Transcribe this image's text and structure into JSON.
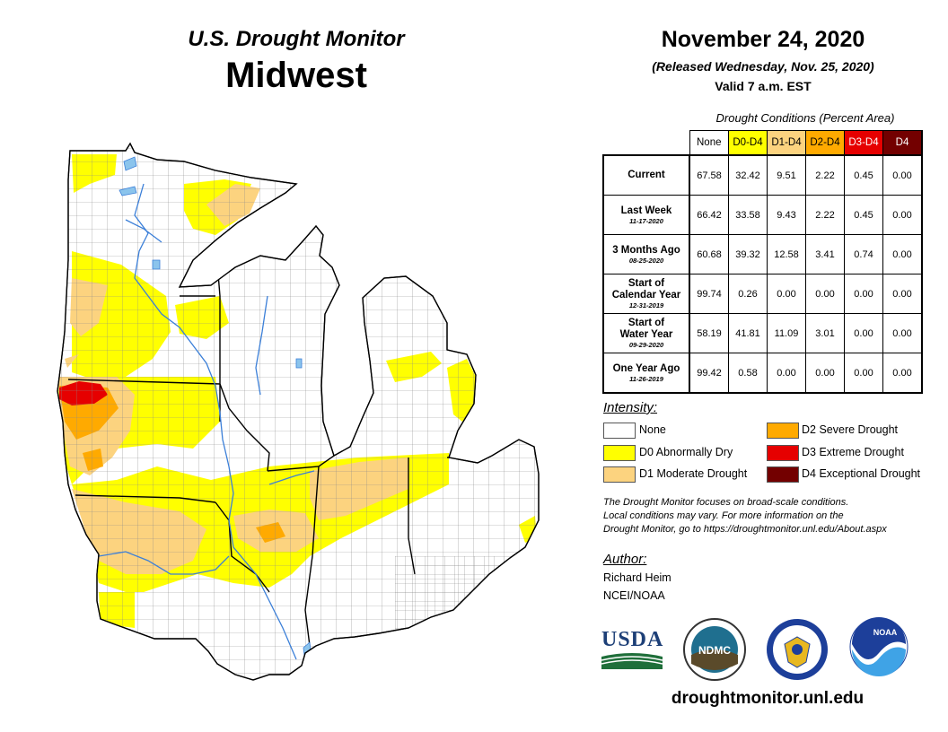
{
  "header": {
    "title": "U.S. Drought Monitor",
    "region": "Midwest",
    "date": "November 24, 2020",
    "released": "(Released Wednesday, Nov. 25, 2020)",
    "valid": "Valid 7 a.m. EST"
  },
  "table": {
    "caption": "Drought Conditions (Percent Area)",
    "columns": [
      "None",
      "D0-D4",
      "D1-D4",
      "D2-D4",
      "D3-D4",
      "D4"
    ],
    "column_colors": [
      "#ffffff",
      "#ffff00",
      "#fcd37f",
      "#ffaa00",
      "#e60000",
      "#730000"
    ],
    "rows": [
      {
        "label": "Current",
        "label2": "",
        "sub": "",
        "values": [
          "67.58",
          "32.42",
          "9.51",
          "2.22",
          "0.45",
          "0.00"
        ]
      },
      {
        "label": "Last Week",
        "label2": "",
        "sub": "11-17-2020",
        "values": [
          "66.42",
          "33.58",
          "9.43",
          "2.22",
          "0.45",
          "0.00"
        ]
      },
      {
        "label": "3 Months Ago",
        "label2": "",
        "sub": "08-25-2020",
        "values": [
          "60.68",
          "39.32",
          "12.58",
          "3.41",
          "0.74",
          "0.00"
        ]
      },
      {
        "label": "Start of",
        "label2": "Calendar Year",
        "sub": "12-31-2019",
        "values": [
          "99.74",
          "0.26",
          "0.00",
          "0.00",
          "0.00",
          "0.00"
        ]
      },
      {
        "label": "Start of",
        "label2": "Water Year",
        "sub": "09-29-2020",
        "values": [
          "58.19",
          "41.81",
          "11.09",
          "3.01",
          "0.00",
          "0.00"
        ]
      },
      {
        "label": "One Year Ago",
        "label2": "",
        "sub": "11-26-2019",
        "values": [
          "99.42",
          "0.58",
          "0.00",
          "0.00",
          "0.00",
          "0.00"
        ]
      }
    ]
  },
  "legend": {
    "title": "Intensity:",
    "items": [
      {
        "label": "None",
        "color": "#ffffff"
      },
      {
        "label": "D0 Abnormally Dry",
        "color": "#ffff00"
      },
      {
        "label": "D1 Moderate Drought",
        "color": "#fcd37f"
      },
      {
        "label": "D2 Severe Drought",
        "color": "#ffaa00"
      },
      {
        "label": "D3 Extreme Drought",
        "color": "#e60000"
      },
      {
        "label": "D4 Exceptional Drought",
        "color": "#730000"
      }
    ]
  },
  "note": {
    "line1": "The Drought Monitor focuses on broad-scale conditions.",
    "line2": "Local conditions may vary. For more information on the",
    "line3": "Drought Monitor, go to https://droughtmonitor.unl.edu/About.aspx"
  },
  "author": {
    "title": "Author:",
    "name": "Richard Heim",
    "org": "NCEI/NOAA"
  },
  "logos": {
    "usda": "USDA",
    "ndmc": "NDMC",
    "noaa": "NOAA"
  },
  "website": "droughtmonitor.unl.edu"
}
